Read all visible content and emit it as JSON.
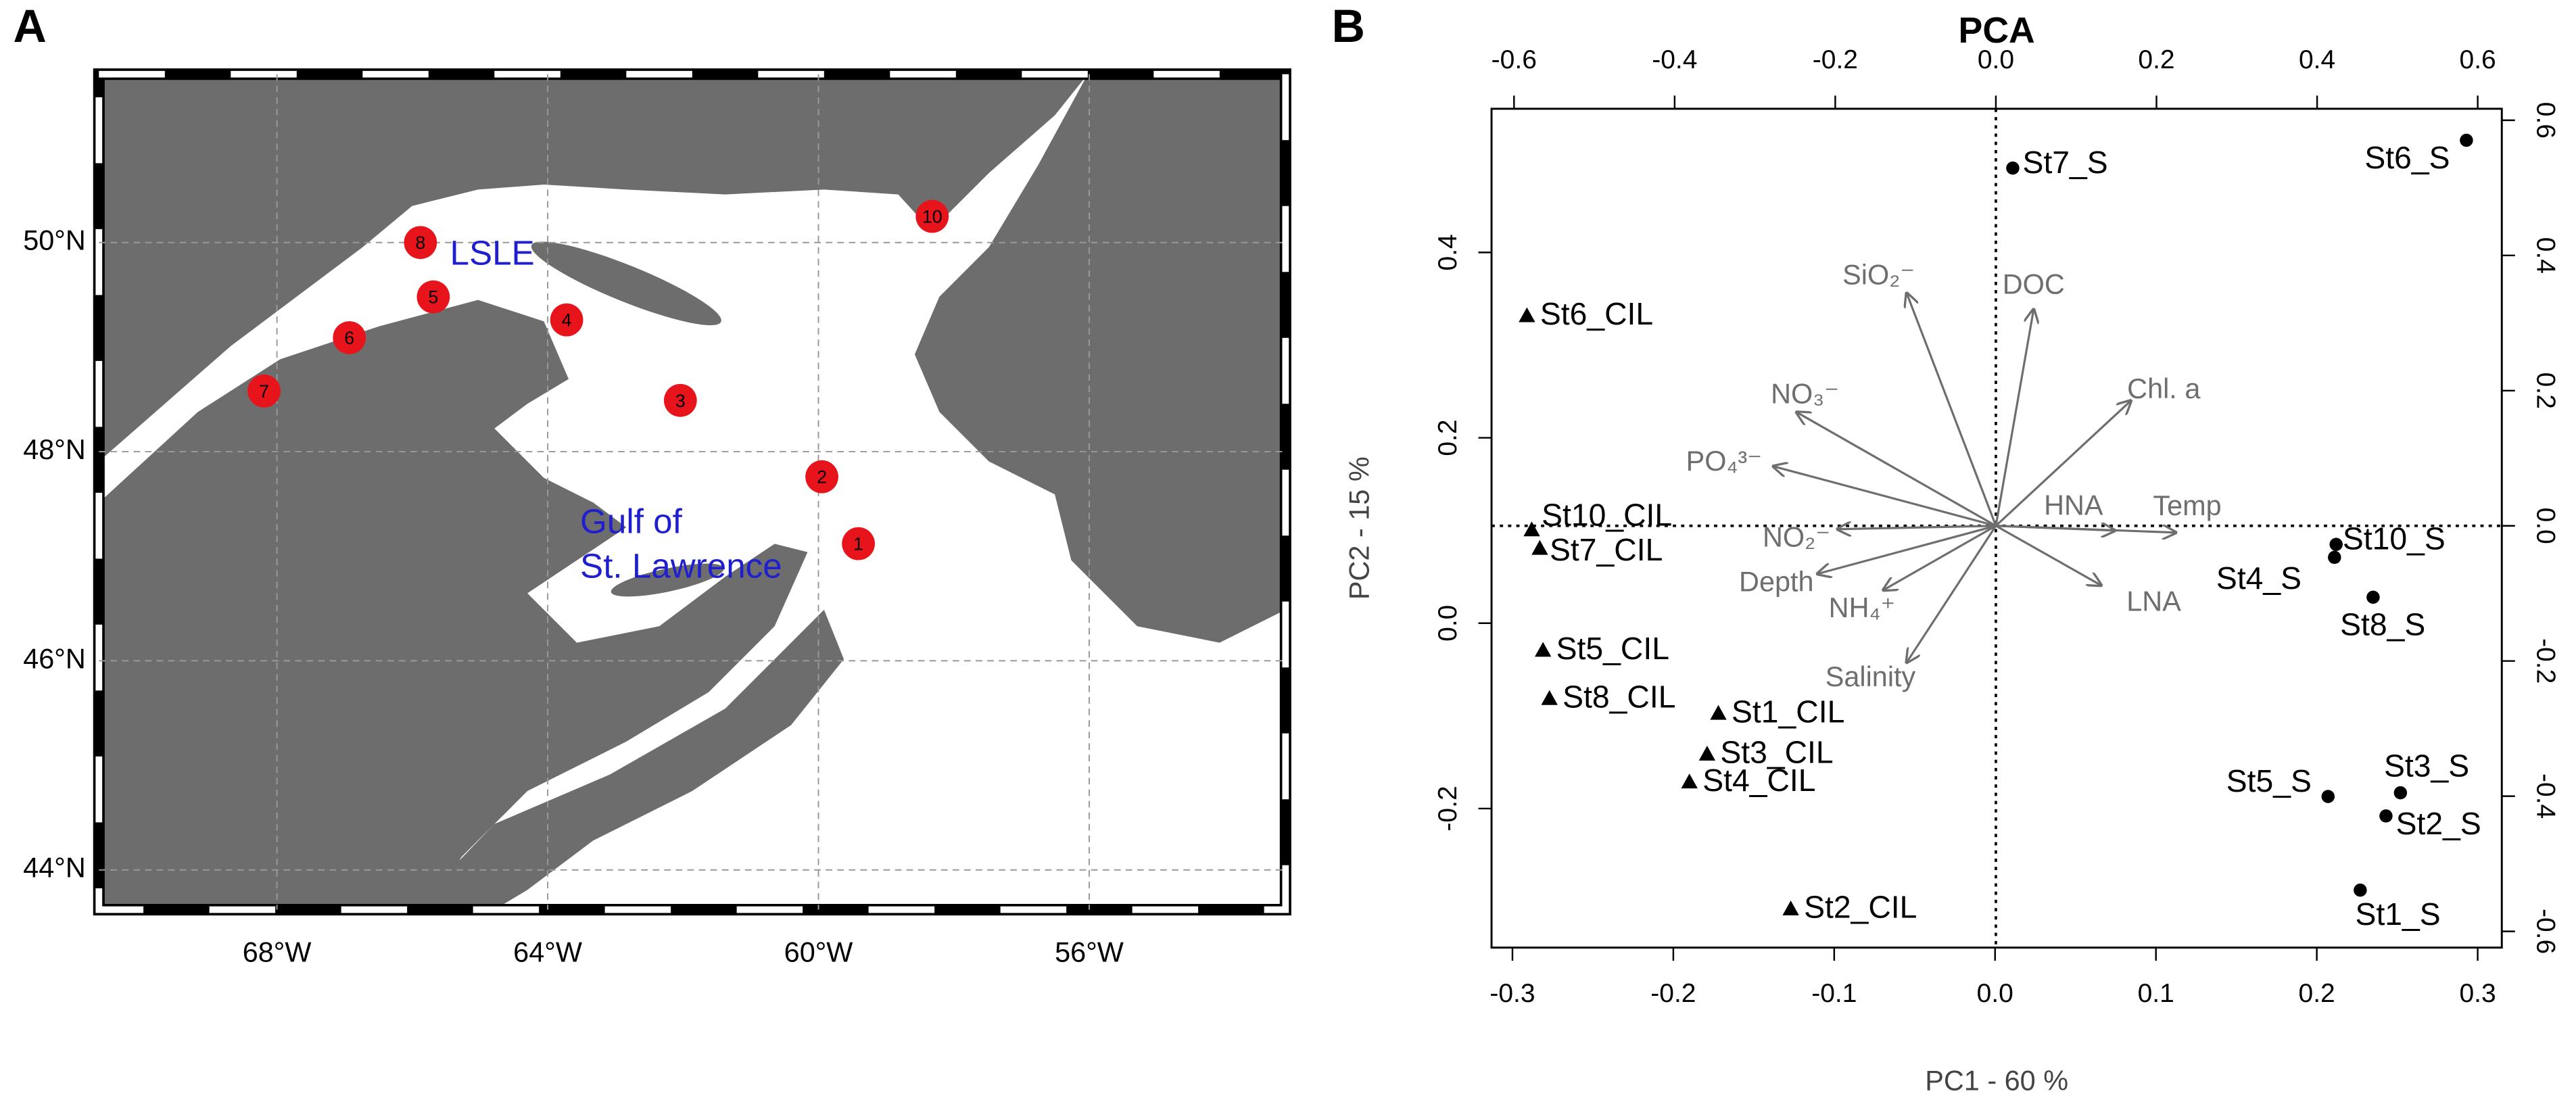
{
  "chart_data": [
    {
      "type": "map",
      "panel_label": "A",
      "xlim": [
        -70.63,
        -53.1
      ],
      "ylim": [
        43.62,
        51.61
      ],
      "xticks": [
        {
          "value": -68,
          "label": "68°W"
        },
        {
          "value": -64,
          "label": "64°W"
        },
        {
          "value": -60,
          "label": "60°W"
        },
        {
          "value": -56,
          "label": "56°W"
        }
      ],
      "yticks": [
        {
          "value": 44,
          "label": "44°N"
        },
        {
          "value": 46,
          "label": "46°N"
        },
        {
          "value": 48,
          "label": "48°N"
        },
        {
          "value": 50,
          "label": "50°N"
        }
      ],
      "grid": true,
      "land_color": "#6d6d6d",
      "stations": {
        "color": "#e8141b",
        "labels": [
          "1",
          "2",
          "3",
          "4",
          "5",
          "6",
          "7",
          "8",
          "10"
        ],
        "lon": [
          -59.41,
          -59.95,
          -62.04,
          -63.72,
          -65.69,
          -66.93,
          -68.19,
          -65.88,
          -58.32
        ],
        "lat": [
          47.12,
          47.76,
          48.49,
          49.26,
          49.48,
          49.09,
          48.58,
          50.0,
          50.25
        ]
      },
      "annotations": [
        {
          "lines": [
            "LSLE"
          ],
          "color": "#1f1fd0"
        },
        {
          "lines": [
            "Gulf of",
            "St. Lawrence"
          ],
          "color": "#1f1fd0"
        }
      ]
    },
    {
      "type": "biplot",
      "panel_label": "B",
      "title": "PCA",
      "x_label": "PC1 -  60 %",
      "y_label": "PC2 -  15 %",
      "xlim": [
        -0.313,
        0.315
      ],
      "xticks": [
        -0.3,
        -0.2,
        -0.1,
        {
          "value": 0,
          "label": "0.0"
        },
        0.1,
        0.2,
        0.3
      ],
      "ylim": [
        -0.35,
        0.555
      ],
      "yticks": [
        -0.2,
        {
          "value": 0,
          "label": "0.0"
        },
        0.2,
        0.4
      ],
      "x2lim": [
        -0.628,
        0.63
      ],
      "x2ticks": [
        -0.6,
        -0.4,
        -0.2,
        {
          "value": 0,
          "label": "0.0"
        },
        0.2,
        0.4,
        0.6
      ],
      "y2lim": [
        -0.624,
        0.617
      ],
      "y2ticks": [
        -0.6,
        -0.4,
        -0.2,
        {
          "value": 0,
          "label": "0.0"
        },
        0.2,
        0.4,
        0.6
      ],
      "series": [
        {
          "marker": "triangle",
          "color": "#000000",
          "labels": [
            "St6_CIL",
            "St10_CIL",
            "St7_CIL",
            "St5_CIL",
            "St8_CIL",
            "St1_CIL",
            "St3_CIL",
            "St4_CIL",
            "St2_CIL"
          ],
          "x": [
            -0.291,
            -0.288,
            -0.283,
            -0.281,
            -0.277,
            -0.172,
            -0.179,
            -0.19,
            -0.127
          ],
          "y": [
            0.331,
            0.1,
            0.08,
            -0.03,
            -0.082,
            -0.098,
            -0.142,
            -0.172,
            -0.309
          ]
        },
        {
          "marker": "circle",
          "color": "#000000",
          "labels": [
            "St7_S",
            "St6_S",
            "St10_S",
            "St4_S",
            "St8_S",
            "St5_S",
            "St3_S",
            "St2_S",
            "St1_S"
          ],
          "x": [
            0.011,
            0.293,
            0.212,
            0.211,
            0.235,
            0.207,
            0.252,
            0.243,
            0.227
          ],
          "y": [
            0.491,
            0.521,
            0.085,
            0.071,
            0.028,
            -0.187,
            -0.183,
            -0.208,
            -0.288
          ]
        }
      ],
      "loadings": {
        "color": "#6e6e6e",
        "labels": [
          "SiO₂⁻",
          "DOC",
          "Chl. a",
          "NO₃⁻",
          "PO₄³⁻",
          "HNA",
          "Temp",
          "NO₂⁻",
          "Depth",
          "NH₄⁺",
          "Salinity",
          "LNA"
        ],
        "x": [
          -0.111,
          0.047,
          0.168,
          -0.248,
          -0.277,
          0.148,
          0.224,
          -0.197,
          -0.222,
          -0.14,
          -0.111,
          0.131
        ],
        "y": [
          0.344,
          0.32,
          0.185,
          0.168,
          0.088,
          -0.007,
          -0.01,
          -0.005,
          -0.071,
          -0.095,
          -0.202,
          -0.088
        ]
      }
    }
  ]
}
